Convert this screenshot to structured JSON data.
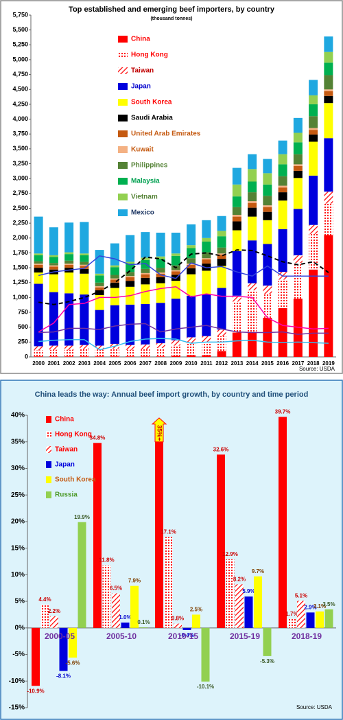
{
  "chart_data": [
    {
      "type": "bar",
      "stacked": true,
      "title": "Top established and emerging beef importers, by country",
      "subtitle": "(thousand tonnes)",
      "source": "Source: USDA",
      "categories": [
        "2000",
        "2001",
        "2002",
        "2003",
        "2004",
        "2005",
        "2006",
        "2007",
        "2008",
        "2009",
        "2010",
        "2011",
        "2012",
        "2013",
        "2014",
        "2015",
        "2016",
        "2017",
        "2018",
        "2019"
      ],
      "ylim": [
        0,
        5750
      ],
      "yticks": [
        0,
        250,
        500,
        750,
        {
          "value": 1000,
          "label": "1,000"
        },
        {
          "value": 1250,
          "label": "1,250"
        },
        {
          "value": 1500,
          "label": "1,500"
        },
        {
          "value": 1750,
          "label": "1,750"
        },
        {
          "value": 2000,
          "label": "2,000"
        },
        {
          "value": 2250,
          "label": "2,250"
        },
        {
          "value": 2500,
          "label": "2,500"
        },
        {
          "value": 2750,
          "label": "2,750"
        },
        {
          "value": 3000,
          "label": "3,000"
        },
        {
          "value": 3250,
          "label": "3,250"
        },
        {
          "value": 3500,
          "label": "3,500"
        },
        {
          "value": 3750,
          "label": "3,750"
        },
        {
          "value": 4000,
          "label": "4,000"
        },
        {
          "value": 4250,
          "label": "4,250"
        },
        {
          "value": 4500,
          "label": "4,500"
        },
        {
          "value": 4750,
          "label": "4,750"
        },
        {
          "value": 5000,
          "label": "5,000"
        },
        {
          "value": 5250,
          "label": "5,250"
        },
        {
          "value": 5500,
          "label": "5,500"
        },
        {
          "value": 5750,
          "label": "5,750"
        }
      ],
      "series": [
        {
          "name": "China",
          "color": "#ff0000",
          "legend_color": "#ff0000",
          "values": [
            10,
            10,
            10,
            10,
            10,
            10,
            10,
            10,
            10,
            20,
            30,
            30,
            100,
            410,
            420,
            660,
            820,
            980,
            1470,
            2050
          ]
        },
        {
          "name": "Hong Kong",
          "color": "#ff0000",
          "pattern": "dots",
          "legend_color": "#ff0000",
          "values": [
            100,
            110,
            110,
            120,
            110,
            130,
            110,
            120,
            140,
            170,
            200,
            220,
            250,
            520,
            700,
            400,
            480,
            600,
            600,
            530
          ]
        },
        {
          "name": "Taiwan",
          "color": "#ff0000",
          "pattern": "hatch",
          "legend_color": "#c00000",
          "values": [
            70,
            70,
            70,
            70,
            70,
            80,
            80,
            80,
            80,
            90,
            100,
            100,
            110,
            100,
            120,
            140,
            130,
            130,
            150,
            200
          ]
        },
        {
          "name": "Japan",
          "color": "#0000dd",
          "legend_color": "#0000cc",
          "values": [
            1050,
            900,
            880,
            850,
            600,
            650,
            680,
            680,
            680,
            700,
            700,
            700,
            700,
            750,
            720,
            700,
            720,
            780,
            830,
            900
          ]
        },
        {
          "name": "South Korea",
          "color": "#ffff00",
          "legend_color": "#ff0000",
          "values": [
            190,
            300,
            350,
            350,
            250,
            290,
            300,
            330,
            330,
            300,
            360,
            400,
            370,
            350,
            400,
            400,
            480,
            520,
            570,
            590
          ]
        },
        {
          "name": "Saudi Arabia",
          "color": "#000000",
          "legend_color": "#000000",
          "values": [
            80,
            80,
            80,
            80,
            80,
            90,
            100,
            110,
            100,
            100,
            100,
            120,
            120,
            150,
            150,
            140,
            140,
            120,
            120,
            120
          ]
        },
        {
          "name": "United Arab Emirates",
          "color": "#c55a11",
          "legend_color": "#c55a11",
          "values": [
            50,
            50,
            50,
            50,
            50,
            50,
            60,
            60,
            60,
            60,
            60,
            70,
            70,
            80,
            80,
            80,
            80,
            80,
            80,
            80
          ]
        },
        {
          "name": "Kuwait",
          "color": "#f4b183",
          "legend_color": "#c55a11",
          "values": [
            20,
            20,
            20,
            20,
            20,
            20,
            20,
            20,
            20,
            20,
            20,
            20,
            20,
            30,
            30,
            30,
            30,
            30,
            30,
            30
          ]
        },
        {
          "name": "Philippines",
          "color": "#548235",
          "legend_color": "#548235",
          "values": [
            40,
            40,
            50,
            50,
            60,
            60,
            70,
            70,
            80,
            80,
            90,
            100,
            100,
            130,
            150,
            160,
            160,
            170,
            200,
            240
          ]
        },
        {
          "name": "Malaysia",
          "color": "#00b050",
          "legend_color": "#00a050",
          "values": [
            100,
            100,
            110,
            110,
            120,
            130,
            140,
            150,
            150,
            160,
            170,
            180,
            190,
            180,
            180,
            190,
            200,
            200,
            200,
            210
          ]
        },
        {
          "name": "Vietnam",
          "color": "#92d050",
          "legend_color": "#548235",
          "values": [
            30,
            30,
            30,
            30,
            30,
            30,
            30,
            40,
            40,
            40,
            50,
            60,
            90,
            200,
            210,
            190,
            170,
            160,
            150,
            180
          ]
        },
        {
          "name": "Mexico",
          "color": "#1fa8e0",
          "legend_color": "#1f3864",
          "values": [
            620,
            470,
            500,
            530,
            400,
            370,
            450,
            430,
            400,
            350,
            350,
            300,
            250,
            280,
            250,
            240,
            230,
            250,
            260,
            260
          ]
        }
      ],
      "lines": [
        {
          "color": "#000000",
          "dash": true,
          "values": [
            920,
            880,
            930,
            1000,
            1100,
            1250,
            1450,
            1680,
            1650,
            1500,
            1730,
            1750,
            1700,
            1800,
            1790,
            1700,
            1600,
            1550,
            1600,
            1420
          ]
        },
        {
          "color": "#3344dd",
          "dash": false,
          "values": [
            1370,
            1430,
            1460,
            1490,
            1700,
            1650,
            1550,
            1570,
            1380,
            1320,
            1580,
            1500,
            1520,
            1430,
            1360,
            1530,
            1360,
            1360,
            1360,
            1360
          ]
        },
        {
          "color": "#ff00aa",
          "dash": false,
          "values": [
            420,
            570,
            880,
            900,
            1000,
            1000,
            1030,
            1100,
            1150,
            1180,
            1010,
            1060,
            1020,
            1020,
            1000,
            660,
            530,
            500,
            470,
            480
          ]
        },
        {
          "color": "#7030a0",
          "dash": false,
          "values": [
            410,
            420,
            480,
            480,
            460,
            520,
            550,
            560,
            420,
            470,
            500,
            530,
            470,
            420,
            410,
            410,
            420,
            380,
            400,
            400
          ]
        },
        {
          "color": "#33bbee",
          "dash": false,
          "values": [
            260,
            280,
            290,
            290,
            120,
            180,
            260,
            300,
            310,
            300,
            230,
            250,
            250,
            270,
            280,
            250,
            240,
            250,
            240,
            230
          ]
        }
      ]
    },
    {
      "type": "bar",
      "stacked": false,
      "title": "China leads the way: Annual beef import growth, by country and time period",
      "source": "Source: USDA",
      "categories": [
        "2000-05",
        "2005-10",
        "2010-15",
        "2015-19",
        "2018-19"
      ],
      "ylim": [
        -15,
        40
      ],
      "yticks": [
        {
          "value": -15,
          "label": "-15%"
        },
        {
          "value": -10,
          "label": "-10%"
        },
        {
          "value": -5,
          "label": "-5%"
        },
        {
          "value": 0,
          "label": "0%"
        },
        {
          "value": 5,
          "label": "5%"
        },
        {
          "value": 10,
          "label": "10%"
        },
        {
          "value": 15,
          "label": "15%"
        },
        {
          "value": 20,
          "label": "20%"
        },
        {
          "value": 25,
          "label": "25%"
        },
        {
          "value": 30,
          "label": "30%"
        },
        {
          "value": 35,
          "label": "35%"
        },
        {
          "value": 40,
          "label": "40%"
        }
      ],
      "series": [
        {
          "name": "China",
          "color": "#ff0000",
          "legend_color": "#ff0000",
          "label_color": "#cc0000",
          "values": [
            -10.9,
            34.8,
            35,
            32.6,
            39.7
          ],
          "value_labels": [
            "-10.9%",
            "34.8%",
            "35%+",
            "32.6%",
            "39.7%"
          ]
        },
        {
          "name": "Hong Kong",
          "color": "#ff0000",
          "pattern": "dots",
          "legend_color": "#ff0000",
          "label_color": "#cc0000",
          "values": [
            4.4,
            11.8,
            17.1,
            12.9,
            1.7
          ],
          "value_labels": [
            "4.4%",
            "11.8%",
            "17.1%",
            "12.9%",
            "1.7%"
          ]
        },
        {
          "name": "Taiwan",
          "color": "#ff0000",
          "pattern": "hatch",
          "legend_color": "#ff0000",
          "label_color": "#cc0000",
          "values": [
            2.2,
            6.5,
            0.8,
            8.2,
            5.1
          ],
          "value_labels": [
            "2.2%",
            "6.5%",
            "0.8%",
            "8.2%",
            "5.1%"
          ]
        },
        {
          "name": "Japan",
          "color": "#0000dd",
          "legend_color": "#0000dd",
          "label_color": "#0000cc",
          "values": [
            -8.1,
            1.0,
            -0.4,
            5.9,
            2.9
          ],
          "value_labels": [
            "-8.1%",
            "1.0%",
            "-0.4%",
            "5.9%",
            "2.9%"
          ]
        },
        {
          "name": "South Korea",
          "color": "#ffff00",
          "legend_color": "#c55a11",
          "label_color": "#7f3f00",
          "values": [
            -5.6,
            7.9,
            2.5,
            9.7,
            3.1
          ],
          "value_labels": [
            "-5.6%",
            "7.9%",
            "2.5%",
            "9.7%",
            "3.1%"
          ]
        },
        {
          "name": "Russia",
          "color": "#92d050",
          "legend_color": "#4e9a2a",
          "label_color": "#385723",
          "values": [
            19.9,
            0.1,
            -10.1,
            -5.3,
            3.5
          ],
          "value_labels": [
            "19.9%",
            "0.1%",
            "-10.1%",
            "-5.3%",
            "3.5%"
          ]
        }
      ]
    }
  ]
}
